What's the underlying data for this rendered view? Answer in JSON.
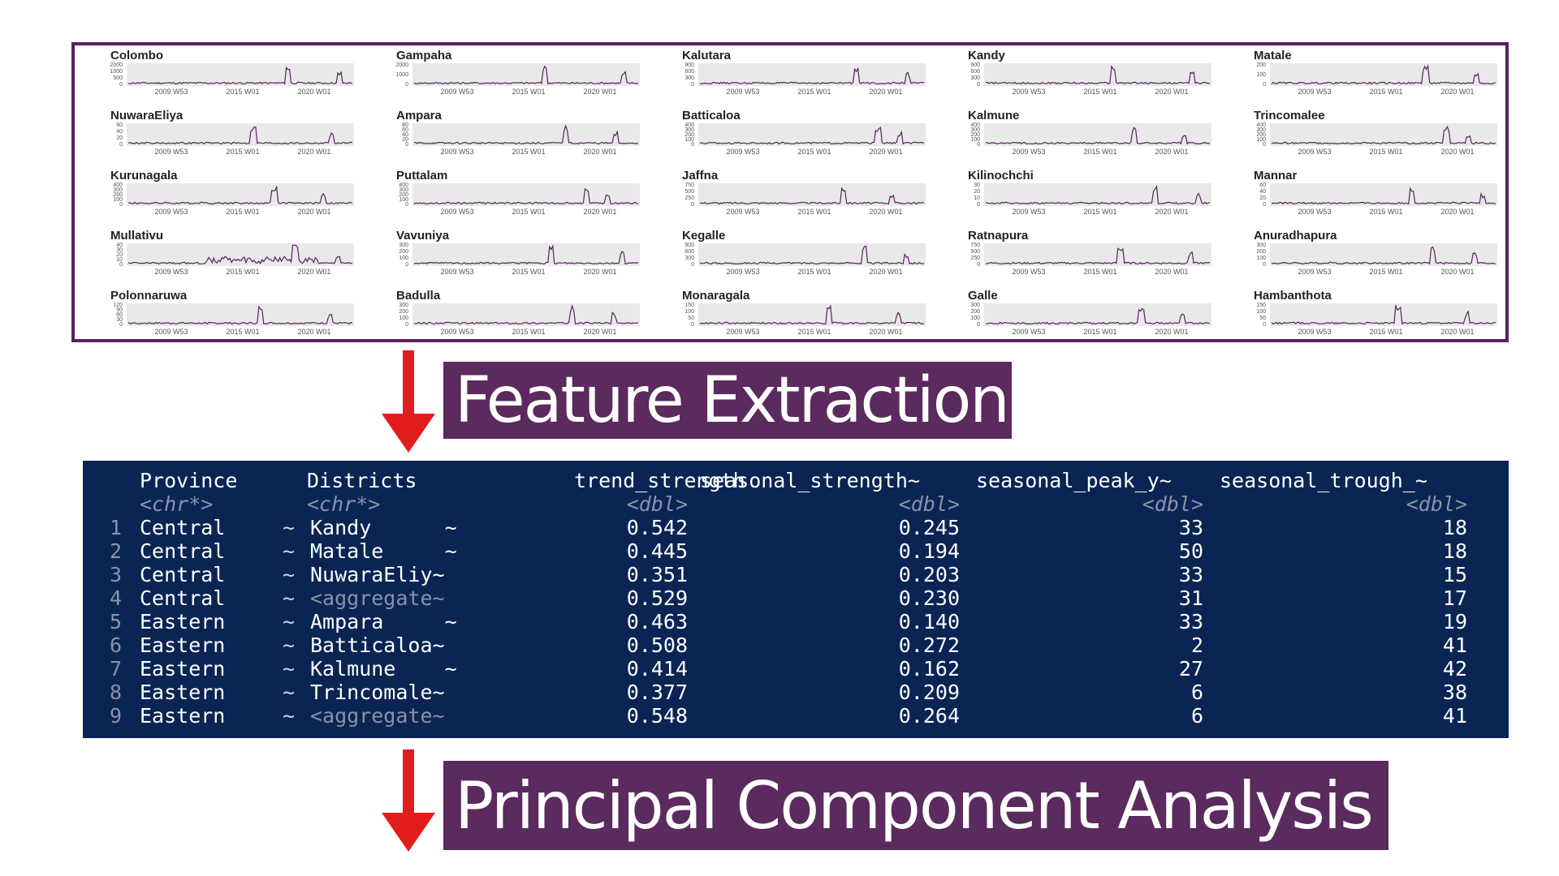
{
  "plots": {
    "x_ticks": [
      "2009 W53",
      "2015 W01",
      "2020 W01"
    ],
    "line_color": "#5a1f63",
    "items": [
      {
        "name": "Colombo",
        "y_ticks": [
          "2000",
          "1000",
          "500",
          "0"
        ]
      },
      {
        "name": "Gampaha",
        "y_ticks": [
          "2000",
          "1000",
          "0"
        ]
      },
      {
        "name": "Kalutara",
        "y_ticks": [
          "900",
          "600",
          "300",
          "0"
        ]
      },
      {
        "name": "Kandy",
        "y_ticks": [
          "900",
          "600",
          "300",
          "0"
        ]
      },
      {
        "name": "Matale",
        "y_ticks": [
          "200",
          "100",
          "0"
        ]
      },
      {
        "name": "NuwaraEliya",
        "y_ticks": [
          "60",
          "40",
          "20",
          "0"
        ]
      },
      {
        "name": "Ampara",
        "y_ticks": [
          "80",
          "60",
          "40",
          "20",
          "0"
        ]
      },
      {
        "name": "Batticaloa",
        "y_ticks": [
          "400",
          "300",
          "200",
          "100",
          "0"
        ]
      },
      {
        "name": "Kalmune",
        "y_ticks": [
          "400",
          "300",
          "200",
          "100",
          "0"
        ]
      },
      {
        "name": "Trincomalee",
        "y_ticks": [
          "400",
          "300",
          "200",
          "100",
          "0"
        ]
      },
      {
        "name": "Kurunagala",
        "y_ticks": [
          "400",
          "300",
          "200",
          "100",
          "0"
        ]
      },
      {
        "name": "Puttalam",
        "y_ticks": [
          "400",
          "300",
          "200",
          "100",
          "0"
        ]
      },
      {
        "name": "Jaffna",
        "y_ticks": [
          "750",
          "500",
          "250",
          "0"
        ]
      },
      {
        "name": "Kilinochchi",
        "y_ticks": [
          "30",
          "20",
          "10",
          "0"
        ]
      },
      {
        "name": "Mannar",
        "y_ticks": [
          "60",
          "40",
          "20",
          "0"
        ]
      },
      {
        "name": "Mullativu",
        "y_ticks": [
          "40",
          "30",
          "20",
          "10",
          "0"
        ]
      },
      {
        "name": "Vavuniya",
        "y_ticks": [
          "300",
          "200",
          "100",
          "0"
        ]
      },
      {
        "name": "Kegalle",
        "y_ticks": [
          "900",
          "600",
          "300",
          "0"
        ]
      },
      {
        "name": "Ratnapura",
        "y_ticks": [
          "750",
          "500",
          "250",
          "0"
        ]
      },
      {
        "name": "Anuradhapura",
        "y_ticks": [
          "300",
          "200",
          "100",
          "0"
        ]
      },
      {
        "name": "Polonnaruwa",
        "y_ticks": [
          "120",
          "90",
          "60",
          "30",
          "0"
        ]
      },
      {
        "name": "Badulla",
        "y_ticks": [
          "300",
          "200",
          "100",
          "0"
        ]
      },
      {
        "name": "Monaragala",
        "y_ticks": [
          "150",
          "100",
          "50",
          "0"
        ]
      },
      {
        "name": "Galle",
        "y_ticks": [
          "300",
          "200",
          "100",
          "0"
        ]
      },
      {
        "name": "Hambanthota",
        "y_ticks": [
          "150",
          "100",
          "50",
          "0"
        ]
      }
    ]
  },
  "steps": {
    "feature_extraction": "Feature Extraction",
    "pca": "Principal Component Analysis"
  },
  "console": {
    "headers": [
      "Province",
      "Districts",
      "trend_strength",
      "seasonal_strength~",
      "seasonal_peak_y~",
      "seasonal_trough_~"
    ],
    "types": [
      "<chr*>",
      "<chr*>",
      "<dbl>",
      "<dbl>",
      "<dbl>",
      "<dbl>"
    ],
    "rows": [
      {
        "idx": "1",
        "province": "Central",
        "district": "Kandy      ~",
        "trend": "0.542",
        "seasonal": "0.245",
        "peak": "33",
        "trough": "18"
      },
      {
        "idx": "2",
        "province": "Central",
        "district": "Matale     ~",
        "trend": "0.445",
        "seasonal": "0.194",
        "peak": "50",
        "trough": "18"
      },
      {
        "idx": "3",
        "province": "Central",
        "district": "NuwaraEliy~",
        "trend": "0.351",
        "seasonal": "0.203",
        "peak": "33",
        "trough": "15"
      },
      {
        "idx": "4",
        "province": "Central",
        "district": "<aggregate~",
        "trend": "0.529",
        "seasonal": "0.230",
        "peak": "31",
        "trough": "17",
        "grey": true
      },
      {
        "idx": "5",
        "province": "Eastern",
        "district": "Ampara     ~",
        "trend": "0.463",
        "seasonal": "0.140",
        "peak": "33",
        "trough": "19"
      },
      {
        "idx": "6",
        "province": "Eastern",
        "district": "Batticaloa~",
        "trend": "0.508",
        "seasonal": "0.272",
        "peak": "2",
        "trough": "41"
      },
      {
        "idx": "7",
        "province": "Eastern",
        "district": "Kalmune    ~",
        "trend": "0.414",
        "seasonal": "0.162",
        "peak": "27",
        "trough": "42"
      },
      {
        "idx": "8",
        "province": "Eastern",
        "district": "Trincomale~",
        "trend": "0.377",
        "seasonal": "0.209",
        "peak": "6",
        "trough": "38"
      },
      {
        "idx": "9",
        "province": "Eastern",
        "district": "<aggregate~",
        "trend": "0.548",
        "seasonal": "0.264",
        "peak": "6",
        "trough": "41",
        "grey": true
      }
    ],
    "tilde": "~"
  }
}
